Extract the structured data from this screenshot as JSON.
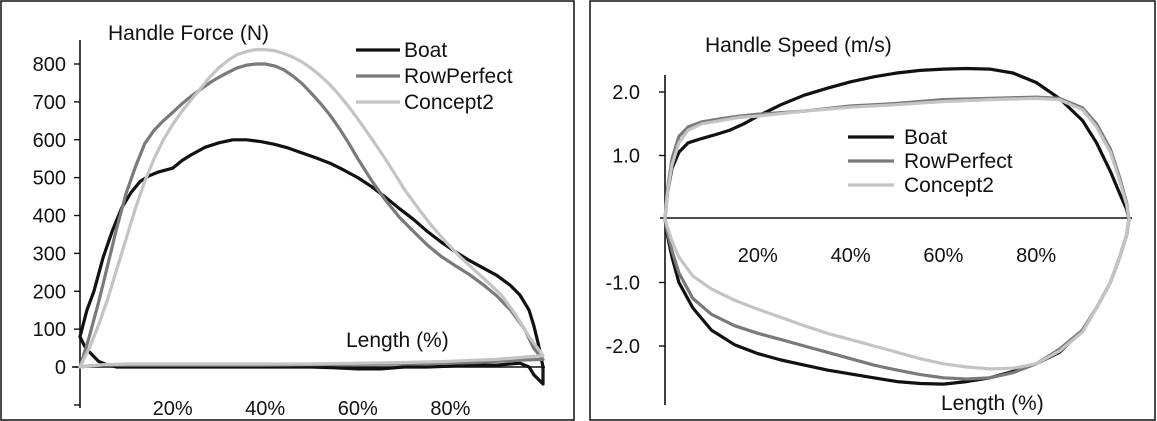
{
  "chart_data": [
    {
      "type": "line",
      "title": "Handle Force (N)",
      "xlabel": "Length (%)",
      "ylabel": "",
      "xlim": [
        0,
        100
      ],
      "ylim": [
        -100,
        880
      ],
      "x_ticks": [
        "20%",
        "40%",
        "60%",
        "80%"
      ],
      "x_tick_values": [
        20,
        40,
        60,
        80
      ],
      "y_ticks": [
        "0",
        "100",
        "200",
        "300",
        "400",
        "500",
        "600",
        "700",
        "800"
      ],
      "y_tick_values": [
        0,
        100,
        200,
        300,
        400,
        500,
        600,
        700,
        800
      ],
      "legend": "top-right",
      "grid": false,
      "series": [
        {
          "name": "Boat",
          "color": "#111111",
          "x": [
            0,
            1.5,
            3,
            5,
            7,
            9,
            11,
            13,
            15,
            17,
            20,
            22,
            24,
            27,
            30,
            33,
            36,
            39,
            42,
            45,
            48,
            51,
            54,
            57,
            60,
            63,
            66,
            69,
            72,
            75,
            78,
            81,
            84,
            87,
            90,
            93,
            95,
            97,
            98,
            99,
            100,
            100,
            98,
            97,
            95,
            90,
            85,
            80,
            75,
            70,
            65,
            60,
            55,
            50,
            45,
            40,
            35,
            30,
            25,
            20,
            15,
            10,
            8,
            6,
            4,
            2,
            1,
            0
          ],
          "y": [
            80,
            150,
            200,
            290,
            360,
            420,
            460,
            490,
            505,
            515,
            525,
            545,
            560,
            580,
            592,
            600,
            600,
            595,
            588,
            578,
            565,
            552,
            538,
            520,
            500,
            476,
            448,
            418,
            390,
            358,
            330,
            305,
            282,
            262,
            242,
            215,
            190,
            150,
            110,
            60,
            0,
            -45,
            -20,
            0,
            10,
            5,
            5,
            2,
            0,
            0,
            -5,
            -5,
            -2,
            0,
            0,
            0,
            0,
            0,
            0,
            0,
            0,
            0,
            0,
            5,
            15,
            40,
            55,
            80
          ]
        },
        {
          "name": "RowPerfect",
          "color": "#7a7a7a",
          "x": [
            0,
            2,
            4,
            6,
            8,
            10,
            12,
            14,
            16,
            18,
            20,
            22,
            24,
            26,
            28,
            30,
            32,
            34,
            36,
            38,
            40,
            42,
            44,
            46,
            48,
            50,
            52,
            54,
            56,
            58,
            60,
            63,
            66,
            69,
            72,
            75,
            78,
            81,
            84,
            87,
            90,
            93,
            96,
            98,
            100,
            95,
            90,
            85,
            80,
            70,
            60,
            50,
            40,
            30,
            20,
            10,
            5,
            2,
            0
          ],
          "y": [
            0,
            80,
            170,
            270,
            370,
            460,
            530,
            590,
            625,
            650,
            672,
            695,
            715,
            733,
            750,
            765,
            778,
            790,
            797,
            800,
            800,
            795,
            785,
            768,
            748,
            722,
            695,
            665,
            630,
            592,
            550,
            492,
            440,
            395,
            358,
            322,
            292,
            268,
            245,
            218,
            188,
            150,
            100,
            50,
            20,
            18,
            15,
            12,
            10,
            8,
            7,
            6,
            5,
            5,
            5,
            5,
            5,
            3,
            0
          ]
        },
        {
          "name": "Concept2",
          "color": "#c4c4c4",
          "x": [
            0,
            2,
            4,
            6,
            8,
            10,
            12,
            14,
            16,
            18,
            20,
            22,
            24,
            26,
            28,
            30,
            32,
            34,
            36,
            38,
            40,
            42,
            44,
            46,
            48,
            50,
            52,
            54,
            56,
            58,
            60,
            62,
            64,
            66,
            68,
            70,
            73,
            76,
            79,
            82,
            85,
            88,
            91,
            94,
            97,
            100,
            95,
            90,
            85,
            80,
            70,
            60,
            50,
            40,
            30,
            20,
            10,
            5,
            2,
            0
          ],
          "y": [
            0,
            50,
            110,
            180,
            260,
            340,
            420,
            490,
            550,
            600,
            640,
            675,
            705,
            735,
            765,
            790,
            810,
            825,
            833,
            838,
            838,
            835,
            828,
            818,
            805,
            788,
            768,
            745,
            718,
            688,
            655,
            620,
            585,
            548,
            510,
            470,
            420,
            372,
            330,
            292,
            258,
            225,
            190,
            140,
            80,
            30,
            25,
            20,
            18,
            15,
            12,
            10,
            8,
            8,
            8,
            8,
            8,
            6,
            3,
            0
          ]
        }
      ]
    },
    {
      "type": "line",
      "title": "Handle Speed (m/s)",
      "xlabel": "Length (%)",
      "ylabel": "",
      "xlim": [
        0,
        100
      ],
      "ylim": [
        -3,
        2.5
      ],
      "x_ticks": [
        "20%",
        "40%",
        "60%",
        "80%"
      ],
      "x_tick_values": [
        20,
        40,
        60,
        80
      ],
      "y_ticks": [
        "2.0",
        "1.0",
        "-1.0",
        "-2.0"
      ],
      "y_tick_values": [
        2,
        1,
        -1,
        -2
      ],
      "legend": "center",
      "grid": false,
      "series": [
        {
          "name": "Boat",
          "color": "#111111",
          "x": [
            0,
            0.5,
            1.5,
            3,
            5,
            8,
            11,
            14,
            17,
            20,
            25,
            30,
            35,
            40,
            45,
            50,
            55,
            60,
            65,
            70,
            75,
            80,
            85,
            90,
            93,
            96,
            98,
            99.5,
            100,
            99.5,
            98,
            96,
            93,
            90,
            85,
            80,
            75,
            70,
            65,
            60,
            55,
            50,
            45,
            40,
            35,
            30,
            25,
            20,
            15,
            10,
            6,
            3,
            1.5,
            0.5,
            0
          ],
          "y": [
            0,
            0.4,
            0.8,
            1.05,
            1.2,
            1.27,
            1.33,
            1.4,
            1.5,
            1.62,
            1.8,
            1.95,
            2.06,
            2.16,
            2.24,
            2.3,
            2.34,
            2.36,
            2.37,
            2.36,
            2.3,
            2.15,
            1.9,
            1.55,
            1.2,
            0.75,
            0.4,
            0.15,
            0,
            -0.25,
            -0.6,
            -1.0,
            -1.4,
            -1.75,
            -2.1,
            -2.28,
            -2.4,
            -2.5,
            -2.56,
            -2.6,
            -2.59,
            -2.56,
            -2.5,
            -2.44,
            -2.38,
            -2.3,
            -2.22,
            -2.12,
            -1.98,
            -1.75,
            -1.4,
            -1.0,
            -0.6,
            -0.25,
            0
          ]
        },
        {
          "name": "RowPerfect",
          "color": "#7a7a7a",
          "x": [
            0,
            0.5,
            1.5,
            3,
            5,
            8,
            12,
            16,
            20,
            30,
            40,
            50,
            60,
            70,
            80,
            85,
            90,
            93,
            96,
            98,
            99.5,
            100,
            99.5,
            98,
            96,
            93,
            90,
            85,
            80,
            75,
            70,
            65,
            60,
            55,
            50,
            45,
            40,
            35,
            30,
            25,
            20,
            15,
            10,
            6,
            3,
            1.5,
            0.5,
            0
          ],
          "y": [
            0,
            0.45,
            0.95,
            1.3,
            1.45,
            1.53,
            1.58,
            1.62,
            1.65,
            1.7,
            1.78,
            1.82,
            1.88,
            1.9,
            1.92,
            1.9,
            1.75,
            1.5,
            1.1,
            0.65,
            0.25,
            0,
            -0.25,
            -0.6,
            -1.0,
            -1.4,
            -1.75,
            -2.05,
            -2.28,
            -2.42,
            -2.5,
            -2.52,
            -2.5,
            -2.45,
            -2.38,
            -2.3,
            -2.2,
            -2.1,
            -2.0,
            -1.9,
            -1.8,
            -1.68,
            -1.5,
            -1.25,
            -0.85,
            -0.5,
            -0.2,
            0
          ]
        },
        {
          "name": "Concept2",
          "color": "#c4c4c4",
          "x": [
            0,
            0.5,
            1.5,
            3,
            5,
            8,
            12,
            16,
            20,
            30,
            40,
            50,
            60,
            70,
            80,
            85,
            90,
            93,
            96,
            98,
            99.5,
            100,
            99.5,
            98,
            96,
            93,
            90,
            85,
            80,
            75,
            70,
            65,
            60,
            55,
            50,
            45,
            40,
            35,
            30,
            25,
            20,
            15,
            10,
            6,
            3,
            1.5,
            0.5,
            0
          ],
          "y": [
            0,
            0.4,
            0.85,
            1.2,
            1.4,
            1.5,
            1.55,
            1.6,
            1.62,
            1.7,
            1.76,
            1.8,
            1.85,
            1.88,
            1.9,
            1.88,
            1.72,
            1.45,
            1.05,
            0.6,
            0.22,
            0,
            -0.25,
            -0.6,
            -1.0,
            -1.4,
            -1.78,
            -2.08,
            -2.28,
            -2.35,
            -2.36,
            -2.33,
            -2.28,
            -2.2,
            -2.1,
            -2.0,
            -1.9,
            -1.8,
            -1.68,
            -1.55,
            -1.42,
            -1.28,
            -1.1,
            -0.9,
            -0.6,
            -0.35,
            -0.12,
            0
          ]
        }
      ]
    }
  ]
}
